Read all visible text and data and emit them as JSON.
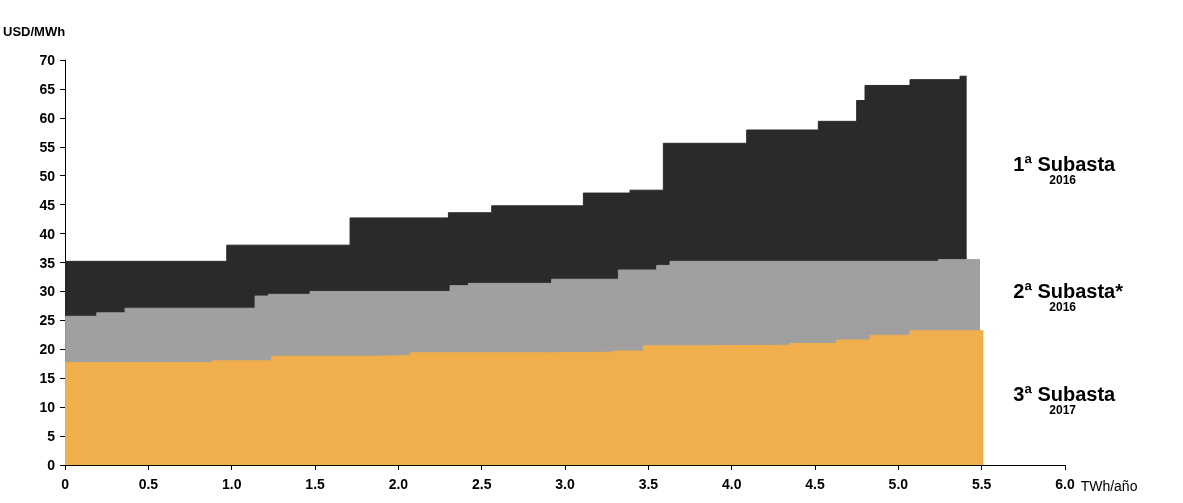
{
  "chart_data": {
    "type": "area",
    "xlabel": "TWh/año",
    "ylabel": "USD/MWh",
    "xlim": [
      0,
      6
    ],
    "xticks": [
      0,
      0.5,
      {
        "value": 1,
        "label": "1.0"
      },
      1.5,
      {
        "value": 2,
        "label": "2.0"
      },
      2.5,
      {
        "value": 3,
        "label": "3.0"
      },
      3.5,
      {
        "value": 4,
        "label": "4.0"
      },
      4.5,
      {
        "value": 5,
        "label": "5.0"
      },
      5.5,
      {
        "value": 6,
        "label": "6.0"
      }
    ],
    "ylim": [
      0,
      70
    ],
    "yticks": [
      0,
      5,
      10,
      15,
      20,
      25,
      30,
      35,
      40,
      45,
      50,
      55,
      60,
      65,
      70
    ],
    "grid": false,
    "legend": false,
    "marker": "none",
    "series": [
      {
        "name": "1ª Subasta$_{2016}$",
        "color": "#2a2a2a",
        "x": [
          0,
          0.97,
          0.97,
          1.71,
          1.71,
          2.3,
          2.3,
          2.56,
          2.56,
          3.11,
          3.11,
          3.39,
          3.39,
          3.59,
          3.59,
          4.09,
          4.09,
          4.52,
          4.52,
          4.75,
          4.75,
          4.8,
          4.8,
          5.07,
          5.07,
          5.37,
          5.37,
          5.41
        ],
        "values": [
          35.2,
          35.2,
          38,
          38,
          42.7,
          42.7,
          43.6,
          43.6,
          44.8,
          44.8,
          47,
          47,
          47.5,
          47.5,
          55.6,
          55.6,
          57.9,
          57.9,
          59.4,
          59.4,
          63,
          63,
          65.6,
          65.6,
          66.6,
          66.6,
          67.2,
          67.2
        ]
      },
      {
        "name": "2ª Subasta*$_{2016}$",
        "color": "#a0a0a0",
        "x": [
          0,
          0.19,
          0.19,
          0.36,
          0.36,
          1.14,
          1.14,
          1.22,
          1.22,
          1.47,
          1.47,
          2.31,
          2.31,
          2.42,
          2.42,
          2.92,
          2.92,
          3.32,
          3.32,
          3.55,
          3.55,
          3.63,
          3.63,
          5.24,
          5.24,
          5.49
        ],
        "values": [
          25.7,
          25.7,
          26.3,
          26.3,
          27.1,
          27.1,
          29.2,
          29.2,
          29.5,
          29.5,
          30,
          30,
          31,
          31,
          31.4,
          31.4,
          32.1,
          32.1,
          33.7,
          33.7,
          34.5,
          34.5,
          35.2,
          35.2,
          35.5,
          35.5
        ]
      },
      {
        "name": "3ª Subasta$_{2017}$",
        "color": "#f0ae4c",
        "x": [
          0,
          0.885,
          0.885,
          1.24,
          1.24,
          1.86,
          1.86,
          2.07,
          2.07,
          2.92,
          2.92,
          3.29,
          3.29,
          3.47,
          3.47,
          3.86,
          3.86,
          4.35,
          4.35,
          4.63,
          4.63,
          4.83,
          4.83,
          5.07,
          5.07,
          5.51
        ],
        "values": [
          17.7,
          17.7,
          18,
          18,
          18.8,
          18.8,
          18.9,
          18.9,
          19.4,
          19.4,
          19.5,
          19.5,
          19.7,
          19.7,
          20.6,
          20.6,
          20.7,
          20.7,
          21,
          21,
          21.6,
          21.6,
          22.4,
          22.4,
          23.2,
          23.2
        ]
      }
    ]
  }
}
